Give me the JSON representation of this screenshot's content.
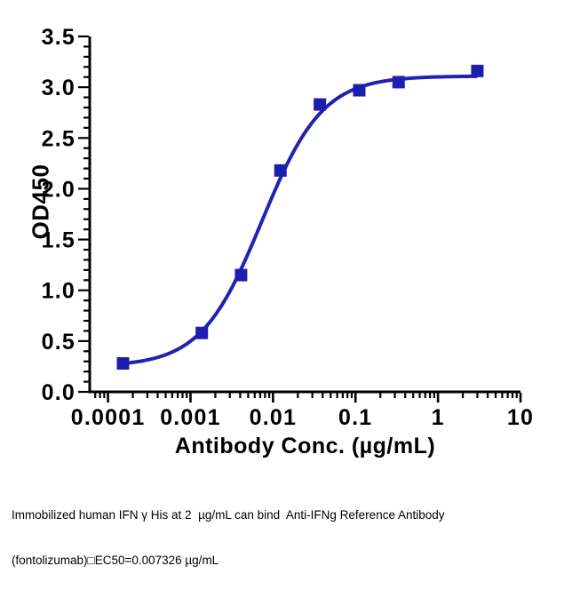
{
  "chart_data": {
    "type": "scatter",
    "title": "",
    "xlabel": "Antibody Conc. (µg/mL)",
    "ylabel": "OD450",
    "xscale": "log",
    "yscale": "linear",
    "xlim": [
      6e-05,
      10
    ],
    "ylim": [
      0,
      3.5
    ],
    "grid": false,
    "legend_position": "none",
    "x_ticks": {
      "values": [
        0.0001,
        0.001,
        0.01,
        0.1,
        1,
        10
      ],
      "labels": [
        "0.0001",
        "0.001",
        "0.01",
        "0.1",
        "1",
        "10"
      ]
    },
    "y_ticks": {
      "values": [
        0.0,
        0.5,
        1.0,
        1.5,
        2.0,
        2.5,
        3.0,
        3.5
      ],
      "labels": [
        "0.0",
        "0.5",
        "1.0",
        "1.5",
        "2.0",
        "2.5",
        "3.0",
        "3.5"
      ],
      "minor_step": 0.1
    },
    "series": [
      {
        "marker": "square",
        "marker_size": 14,
        "color": "#1e1eae",
        "x": [
          0.000152,
          0.00137,
          0.0041,
          0.0123,
          0.037,
          0.111,
          0.333,
          3.0
        ],
        "y": [
          0.28,
          0.58,
          1.15,
          2.18,
          2.83,
          2.97,
          3.05,
          3.16
        ]
      }
    ],
    "fit_curve": {
      "model": "4PL sigmoidal dose-response",
      "bottom": 0.25,
      "top": 3.11,
      "ec50": 0.007326,
      "hill": 1.18,
      "x_range": [
        0.000152,
        3.0
      ],
      "color": "#2222b2",
      "stroke_width": 4
    }
  },
  "caption": {
    "line1": "Immobilized human IFN γ His at 2  µg/mL can bind  Anti-IFNg Reference Antibody",
    "line2": "(fontolizumab)□EC50=0.007326 µg/mL"
  },
  "colors": {
    "axis": "#000000",
    "text": "#000000",
    "background": "#ffffff",
    "accent_blue": "#2222b2"
  }
}
